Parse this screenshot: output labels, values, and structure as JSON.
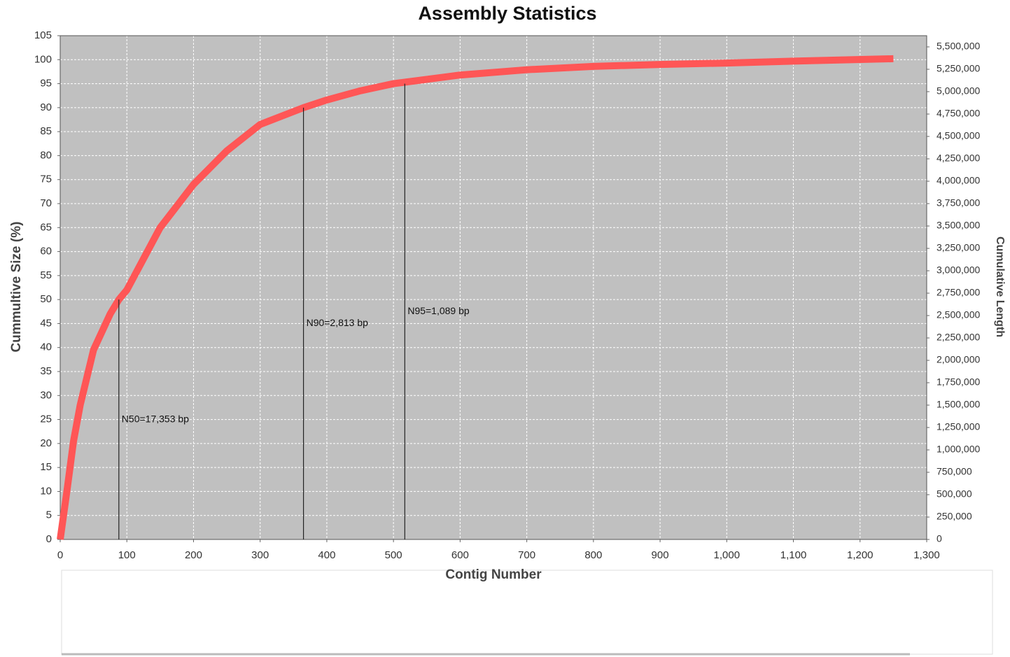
{
  "chart_data": {
    "type": "line",
    "title": "Assembly Statistics",
    "x_label": "Contig Number",
    "y_label": "Cummultive Size (%)",
    "y2_label": "Cumulative Length",
    "x": [
      0,
      5,
      10,
      20,
      30,
      50,
      75,
      88,
      100,
      150,
      200,
      250,
      300,
      365,
      400,
      450,
      500,
      517,
      600,
      700,
      800,
      900,
      1000,
      1100,
      1250
    ],
    "series": [
      {
        "name": "Cumulative Size",
        "color": "#ff5656",
        "values": [
          0,
          5,
          10,
          20.5,
          28,
          39.5,
          47,
          50,
          52,
          65,
          74,
          81,
          86.5,
          90,
          91.6,
          93.5,
          95,
          95.3,
          96.8,
          97.9,
          98.6,
          99,
          99.3,
          99.7,
          100.2
        ]
      }
    ],
    "xlim": [
      0,
      1300
    ],
    "xticks": [
      0,
      100,
      200,
      300,
      400,
      500,
      600,
      700,
      800,
      900,
      {
        "value": 1000,
        "label": "1,000"
      },
      {
        "value": 1100,
        "label": "1,100"
      },
      {
        "value": 1200,
        "label": "1,200"
      },
      {
        "value": 1300,
        "label": "1,300"
      }
    ],
    "ylim": [
      0,
      105
    ],
    "yticks": [
      0,
      5,
      10,
      15,
      20,
      25,
      30,
      35,
      40,
      45,
      50,
      55,
      60,
      65,
      70,
      75,
      80,
      85,
      90,
      95,
      100,
      105
    ],
    "y2lim": [
      0,
      5625000
    ],
    "y2ticks": [
      0,
      {
        "value": 250000,
        "label": "250,000"
      },
      {
        "value": 500000,
        "label": "500,000"
      },
      {
        "value": 750000,
        "label": "750,000"
      },
      {
        "value": 1000000,
        "label": "1,000,000"
      },
      {
        "value": 1250000,
        "label": "1,250,000"
      },
      {
        "value": 1500000,
        "label": "1,500,000"
      },
      {
        "value": 1750000,
        "label": "1,750,000"
      },
      {
        "value": 2000000,
        "label": "2,000,000"
      },
      {
        "value": 2250000,
        "label": "2,250,000"
      },
      {
        "value": 2500000,
        "label": "2,500,000"
      },
      {
        "value": 2750000,
        "label": "2,750,000"
      },
      {
        "value": 3000000,
        "label": "3,000,000"
      },
      {
        "value": 3250000,
        "label": "3,250,000"
      },
      {
        "value": 3500000,
        "label": "3,500,000"
      },
      {
        "value": 3750000,
        "label": "3,750,000"
      },
      {
        "value": 4000000,
        "label": "4,000,000"
      },
      {
        "value": 4250000,
        "label": "4,250,000"
      },
      {
        "value": 4500000,
        "label": "4,500,000"
      },
      {
        "value": 4750000,
        "label": "4,750,000"
      },
      {
        "value": 5000000,
        "label": "5,000,000"
      },
      {
        "value": 5250000,
        "label": "5,250,000"
      },
      {
        "value": 5500000,
        "label": "5,500,000"
      }
    ],
    "annotations": [
      {
        "label": "N50=17,353 bp",
        "x": 88,
        "y": 50
      },
      {
        "label": "N90=2,813 bp",
        "x": 365,
        "y": 90
      },
      {
        "label": "N95=1,089 bp",
        "x": 517,
        "y": 95
      }
    ],
    "grid": true,
    "background": "#c0c0c0"
  }
}
